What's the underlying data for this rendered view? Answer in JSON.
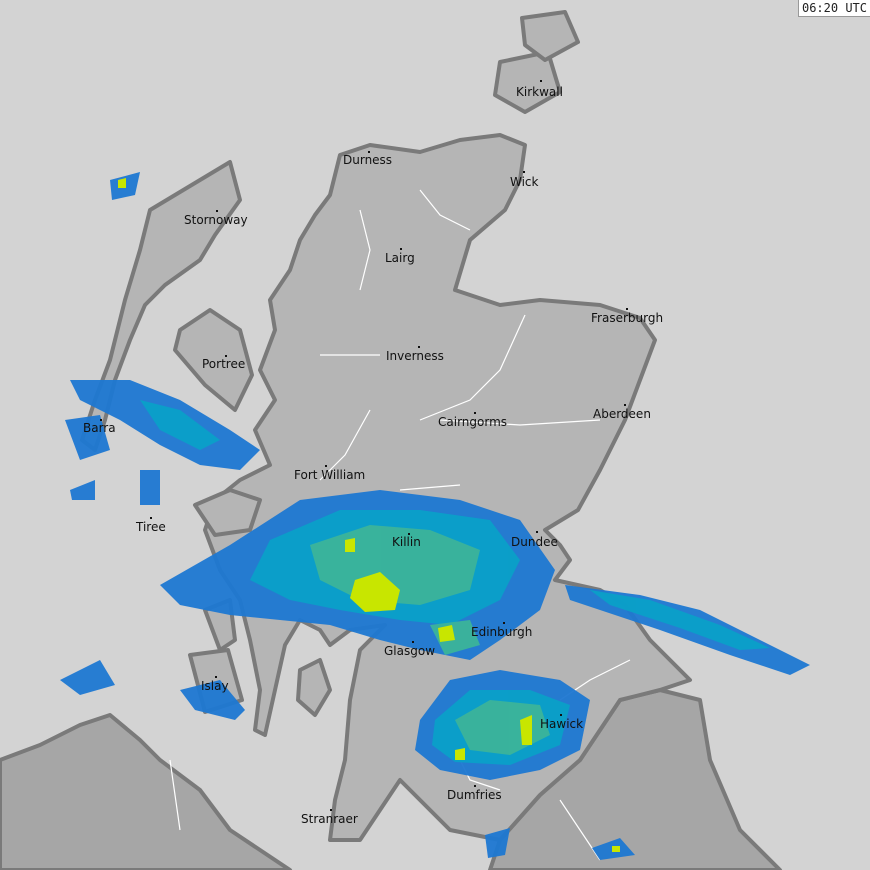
{
  "timestamp": "06:20 UTC",
  "colors": {
    "sea": "#d3d3d3",
    "land_scotland": "#b5b5b5",
    "land_other": "#a6a6a6",
    "coastline": "#7a7a7a",
    "rivers": "#ffffff",
    "radar_light": "#1e78d2",
    "radar_moderate": "#0aa0c8",
    "radar_heavy": "#3cb49a",
    "radar_intense": "#c8e600"
  },
  "cities": [
    "Kirkwall",
    "Durness",
    "Wick",
    "Stornoway",
    "Lairg",
    "Fraserburgh",
    "Inverness",
    "Portree",
    "Aberdeen",
    "Cairngorms",
    "Barra",
    "Fort William",
    "Tiree",
    "Killin",
    "Dundee",
    "Edinburgh",
    "Glasgow",
    "Islay",
    "Hawick",
    "Dumfries",
    "Stranraer"
  ]
}
